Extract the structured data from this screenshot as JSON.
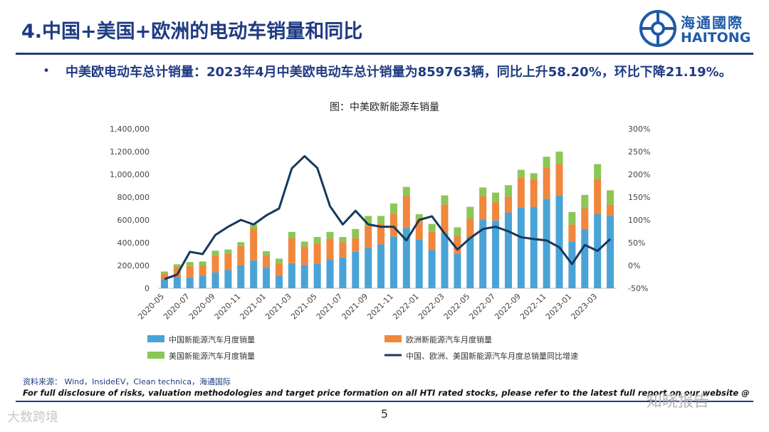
{
  "header": {
    "title": "4.中国+美国+欧洲的电动车销量和同比",
    "logo_cn": "海通國際",
    "logo_en": "HAITONG"
  },
  "summary": {
    "bullet": "•",
    "text": "中美欧电动车总计销量：2023年4月中美欧电动车总计销量为859763辆，同比上升58.20%，环比下降21.19%。"
  },
  "footer": {
    "source": "资料来源： Wind，InsideEV，Clean technica，海通国际",
    "disclaimer": "For full disclosure of risks, valuation methodologies and target price formation on all HTI rated stocks, please refer to the latest full report on our website @",
    "page": "5",
    "watermark_left": "大数跨境",
    "watermark_right": "知晓报告"
  },
  "colors": {
    "china": "#4aa3d6",
    "europe": "#f0873c",
    "us": "#8cc657",
    "line": "#17395c",
    "brand": "#1f3b82"
  },
  "chart_data": {
    "type": "bar",
    "title": "图：中美欧新能源车销量",
    "stacked": true,
    "categories": [
      "2020-05",
      "2020-06",
      "2020-07",
      "2020-08",
      "2020-09",
      "2020-10",
      "2020-11",
      "2020-12",
      "2021-01",
      "2021-02",
      "2021-03",
      "2021-04",
      "2021-05",
      "2021-06",
      "2021-07",
      "2021-08",
      "2021-09",
      "2021-10",
      "2021-11",
      "2021-12",
      "2022-01",
      "2022-02",
      "2022-03",
      "2022-04",
      "2022-05",
      "2022-06",
      "2022-07",
      "2022-08",
      "2022-09",
      "2022-10",
      "2022-11",
      "2022-12",
      "2023-01",
      "2023-02",
      "2023-03",
      "2023-04"
    ],
    "x_tick_labels": [
      "2020-05",
      "2020-07",
      "2020-09",
      "2020-11",
      "2021-01",
      "2021-03",
      "2021-05",
      "2021-07",
      "2021-09",
      "2021-11",
      "2022-01",
      "2022-03",
      "2022-05",
      "2022-07",
      "2022-09",
      "2022-11",
      "2023-01",
      "2023-03"
    ],
    "series": [
      {
        "name": "中国新能源汽车月度销量",
        "axis": "left",
        "values": [
          80000,
          100000,
          95000,
          110000,
          140000,
          160000,
          200000,
          245000,
          180000,
          110000,
          220000,
          205000,
          215000,
          255000,
          270000,
          320000,
          355000,
          385000,
          455000,
          530000,
          430000,
          335000,
          485000,
          300000,
          450000,
          600000,
          595000,
          665000,
          710000,
          715000,
          785000,
          815000,
          410000,
          520000,
          650000,
          635000
        ]
      },
      {
        "name": "欧洲新能源汽车月度销量",
        "axis": "left",
        "values": [
          50000,
          85000,
          100000,
          90000,
          150000,
          140000,
          170000,
          280000,
          110000,
          110000,
          220000,
          160000,
          180000,
          180000,
          135000,
          120000,
          190000,
          180000,
          200000,
          280000,
          175000,
          160000,
          250000,
          160000,
          160000,
          210000,
          160000,
          140000,
          260000,
          245000,
          275000,
          275000,
          150000,
          180000,
          310000,
          100000
        ]
      },
      {
        "name": "美国新能源汽车月度销量",
        "axis": "left",
        "values": [
          17000,
          25000,
          35000,
          35000,
          40000,
          40000,
          35000,
          35000,
          35000,
          40000,
          55000,
          45000,
          55000,
          60000,
          45000,
          80000,
          90000,
          70000,
          90000,
          80000,
          45000,
          70000,
          80000,
          75000,
          105000,
          75000,
          85000,
          100000,
          70000,
          50000,
          95000,
          110000,
          110000,
          120000,
          130000,
          125000
        ]
      },
      {
        "name": "中国、欧洲、美国新能源汽车月度总销量同比增速",
        "axis": "right",
        "type": "line",
        "values": [
          -30,
          -20,
          30,
          25,
          67,
          85,
          100,
          90,
          110,
          125,
          213,
          240,
          214,
          130,
          90,
          120,
          90,
          85,
          85,
          55,
          100,
          108,
          70,
          35,
          60,
          80,
          85,
          75,
          62,
          58,
          55,
          40,
          3,
          45,
          32,
          58
        ]
      }
    ],
    "ylim_left": [
      0,
      1400000
    ],
    "yticks_left": [
      "0",
      "200,000",
      "400,000",
      "600,000",
      "800,000",
      "1,000,000",
      "1,200,000",
      "1,400,000"
    ],
    "ylim_right": [
      -50,
      300
    ],
    "yticks_right": [
      "-50%",
      "0%",
      "50%",
      "100%",
      "150%",
      "200%",
      "250%",
      "300%"
    ],
    "legend": [
      "中国新能源汽车月度销量",
      "欧洲新能源汽车月度销量",
      "美国新能源汽车月度销量",
      "中国、欧洲、美国新能源汽车月度总销量同比增速"
    ],
    "legend_position": "bottom"
  }
}
